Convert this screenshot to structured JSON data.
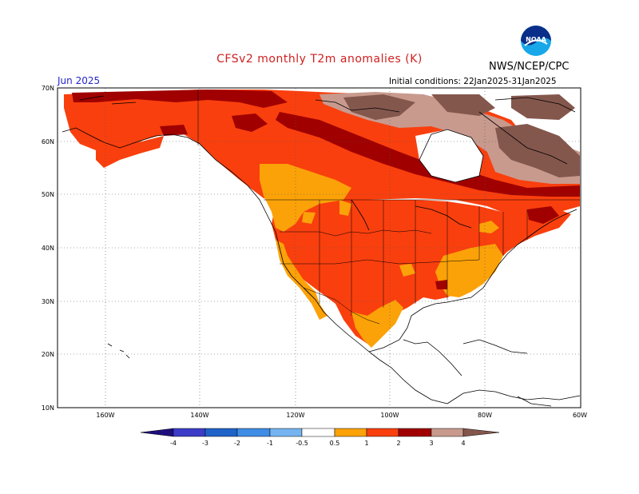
{
  "header": {
    "title": "CFSv2 monthly T2m anomalies (K)",
    "org": "NWS/NCEP/CPC",
    "month": "Jun 2025",
    "initial_conditions": "Initial conditions: 22Jan2025-31Jan2025",
    "logo_text": "NOAA"
  },
  "axes": {
    "lat_labels": [
      "70N",
      "60N",
      "50N",
      "40N",
      "30N",
      "20N",
      "10N"
    ],
    "lon_labels": [
      "160W",
      "140W",
      "120W",
      "100W",
      "80W",
      "60W"
    ]
  },
  "legend": {
    "labels": [
      "-4",
      "-3",
      "-2",
      "-1",
      "-0.5",
      "0.5",
      "1",
      "2",
      "3",
      "4"
    ],
    "colors": [
      "#1e0f7d",
      "#3c3cc8",
      "#1f63c9",
      "#3e8ce4",
      "#75b4f0",
      "#ffffff",
      "#fba208",
      "#f93f0e",
      "#dd2211",
      "#a00000",
      "#c89a8e",
      "#84574d"
    ]
  },
  "colors": {
    "title": "#d02020",
    "month": "#2626c8",
    "orange": "#fba208",
    "red_orange": "#f93f0e",
    "dark_red": "#a00000",
    "rose": "#c89a8e",
    "brown": "#84574d",
    "coast": "#000000"
  }
}
